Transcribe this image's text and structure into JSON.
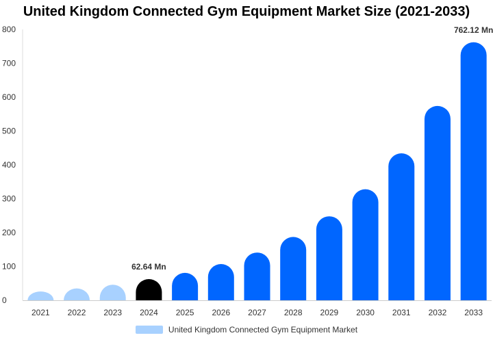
{
  "chart_data": {
    "type": "bar",
    "title": "United Kingdom Connected Gym Equipment Market Size (2021-2033)",
    "categories": [
      "2021",
      "2022",
      "2023",
      "2024",
      "2025",
      "2026",
      "2027",
      "2028",
      "2029",
      "2030",
      "2031",
      "2032",
      "2033"
    ],
    "series": [
      {
        "name": "United Kingdom Connected Gym Equipment Market",
        "values": [
          26,
          35,
          46,
          62.64,
          81,
          107,
          141,
          187,
          248,
          328,
          434,
          574,
          762.12
        ],
        "colors": [
          "#a8d1ff",
          "#a8d1ff",
          "#a8d1ff",
          "#000000",
          "#0066ff",
          "#0066ff",
          "#0066ff",
          "#0066ff",
          "#0066ff",
          "#0066ff",
          "#0066ff",
          "#0066ff",
          "#0066ff"
        ]
      }
    ],
    "data_labels": [
      {
        "category": "2024",
        "text": "62.64 Mn"
      },
      {
        "category": "2033",
        "text": "762.12 Mn"
      }
    ],
    "y_ticks": [
      0,
      100,
      200,
      300,
      400,
      500,
      600,
      700,
      800
    ],
    "ylim": [
      0,
      800
    ],
    "grid": false,
    "legend_position": "bottom",
    "legend_color": "#a8d1ff"
  }
}
